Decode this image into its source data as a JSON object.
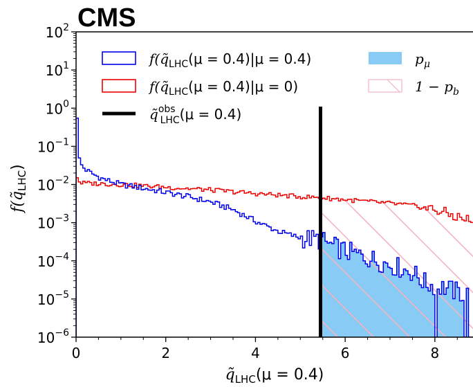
{
  "chart_data": {
    "type": "histogram",
    "experiment_label": "CMS",
    "xlabel": {
      "main": "q̃",
      "sub": "LHC",
      "rest": "(μ = 0.4)"
    },
    "ylabel": {
      "prefix": "f(",
      "main": "q̃",
      "sub": "LHC",
      "suffix": ")"
    },
    "xlim": [
      0,
      8.85
    ],
    "ylim_log10": [
      -6,
      2
    ],
    "log_y": true,
    "xticks": [
      0,
      2,
      4,
      6,
      8
    ],
    "yticks_exp": [
      2,
      1,
      0,
      -1,
      -2,
      -3,
      -4,
      -5,
      -6
    ],
    "observed_value": 5.45,
    "legend": {
      "placement": "upper",
      "entries": [
        {
          "key": "sb",
          "f": "f(",
          "q": "q̃",
          "sub": "LHC",
          "rest": "(μ = 0.4)|μ = 0.4)"
        },
        {
          "key": "bonly",
          "f": "f(",
          "q": "q̃",
          "sub": "LHC",
          "rest": "(μ = 0.4)|μ = 0)"
        },
        {
          "key": "obs",
          "q": "q̃",
          "sup": "obs",
          "sub": "LHC",
          "rest": "(μ = 0.4)"
        },
        {
          "key": "pmu",
          "main": "p",
          "sub": "μ"
        },
        {
          "key": "onemp",
          "main": "1 − p",
          "sub": "b"
        }
      ]
    },
    "colors": {
      "signal_plus_background": "#0000ee",
      "background_only": "#ee0000",
      "observed": "#000000",
      "p_mu_fill": "#88ccf5",
      "one_minus_pb_hatch": "#f4b5c1"
    },
    "series": [
      {
        "name": "sb",
        "description_points": [
          [
            0.0,
            0.55
          ],
          [
            0.02,
            0.35
          ],
          [
            0.05,
            0.06
          ],
          [
            0.1,
            0.035
          ],
          [
            0.2,
            0.025
          ],
          [
            0.4,
            0.018
          ],
          [
            0.6,
            0.014
          ],
          [
            1.0,
            0.01
          ],
          [
            1.5,
            0.008
          ],
          [
            2.0,
            0.0062
          ],
          [
            2.5,
            0.0048
          ],
          [
            3.0,
            0.0035
          ],
          [
            3.5,
            0.0022
          ],
          [
            4.0,
            0.0011
          ],
          [
            4.5,
            0.0006
          ],
          [
            5.0,
            0.0004
          ],
          [
            5.45,
            0.00035
          ],
          [
            5.7,
            0.00025
          ],
          [
            6.0,
            0.00018
          ],
          [
            6.5,
            0.00012
          ],
          [
            7.0,
            8e-05
          ],
          [
            7.5,
            5e-05
          ],
          [
            7.8,
            2.5e-05
          ],
          [
            8.2,
            2e-05
          ],
          [
            8.5,
            1.5e-05
          ],
          [
            8.85,
            1.2e-05
          ]
        ]
      },
      {
        "name": "bonly",
        "description_points": [
          [
            0.0,
            0.015
          ],
          [
            0.1,
            0.011
          ],
          [
            0.5,
            0.0105
          ],
          [
            1.0,
            0.01
          ],
          [
            2.0,
            0.0085
          ],
          [
            3.0,
            0.0072
          ],
          [
            4.0,
            0.0058
          ],
          [
            5.0,
            0.0048
          ],
          [
            5.45,
            0.0045
          ],
          [
            6.0,
            0.004
          ],
          [
            7.0,
            0.0032
          ],
          [
            7.5,
            0.0028
          ],
          [
            8.0,
            0.0022
          ],
          [
            8.5,
            0.0014
          ],
          [
            8.85,
            0.0011
          ]
        ]
      }
    ]
  }
}
